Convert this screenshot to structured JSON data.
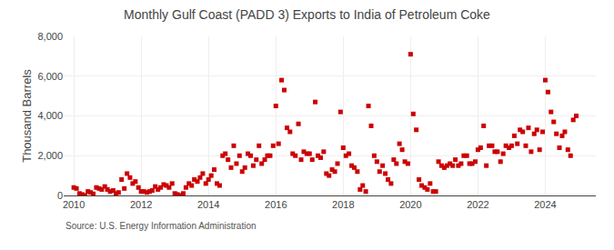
{
  "chart_data": {
    "type": "scatter",
    "title": "Monthly Gulf Coast (PADD 3) Exports to India of Petroleum Coke",
    "ylabel": "Thousand Barrels",
    "annotations": [
      "Source: U.S. Energy Information Administration"
    ],
    "color": "#cc0000",
    "marker": "square",
    "grid": true,
    "xlim": [
      2009.7,
      2025.5
    ],
    "xticks": [
      2010,
      2012,
      2014,
      2016,
      2018,
      2020,
      2022,
      2024
    ],
    "ylim": [
      0,
      8000
    ],
    "yticks": [
      0,
      {
        "value": 2000,
        "label": "2,000"
      },
      {
        "value": 4000,
        "label": "4,000"
      },
      {
        "value": 6000,
        "label": "6,000"
      },
      {
        "value": 8000,
        "label": "8,000"
      }
    ],
    "x": [
      2010.0,
      2010.08,
      2010.17,
      2010.25,
      2010.33,
      2010.42,
      2010.5,
      2010.58,
      2010.67,
      2010.75,
      2010.83,
      2010.92,
      2011.0,
      2011.08,
      2011.17,
      2011.25,
      2011.33,
      2011.42,
      2011.5,
      2011.58,
      2011.67,
      2011.75,
      2011.83,
      2011.92,
      2012.0,
      2012.08,
      2012.17,
      2012.25,
      2012.33,
      2012.42,
      2012.5,
      2012.58,
      2012.67,
      2012.75,
      2012.83,
      2012.92,
      2013.0,
      2013.08,
      2013.17,
      2013.25,
      2013.33,
      2013.42,
      2013.5,
      2013.58,
      2013.67,
      2013.75,
      2013.83,
      2013.92,
      2014.0,
      2014.08,
      2014.17,
      2014.25,
      2014.33,
      2014.42,
      2014.5,
      2014.58,
      2014.67,
      2014.75,
      2014.83,
      2014.92,
      2015.0,
      2015.08,
      2015.17,
      2015.25,
      2015.33,
      2015.42,
      2015.5,
      2015.58,
      2015.67,
      2015.75,
      2015.83,
      2015.92,
      2016.0,
      2016.08,
      2016.17,
      2016.25,
      2016.33,
      2016.42,
      2016.5,
      2016.58,
      2016.67,
      2016.75,
      2016.83,
      2016.92,
      2017.0,
      2017.08,
      2017.17,
      2017.25,
      2017.33,
      2017.42,
      2017.5,
      2017.58,
      2017.67,
      2017.75,
      2017.83,
      2017.92,
      2018.0,
      2018.08,
      2018.17,
      2018.25,
      2018.33,
      2018.42,
      2018.5,
      2018.58,
      2018.67,
      2018.75,
      2018.83,
      2018.92,
      2019.0,
      2019.08,
      2019.17,
      2019.25,
      2019.33,
      2019.42,
      2019.5,
      2019.58,
      2019.67,
      2019.75,
      2019.83,
      2019.92,
      2020.0,
      2020.08,
      2020.17,
      2020.25,
      2020.33,
      2020.42,
      2020.5,
      2020.58,
      2020.67,
      2020.75,
      2020.83,
      2020.92,
      2021.0,
      2021.08,
      2021.17,
      2021.25,
      2021.33,
      2021.42,
      2021.5,
      2021.58,
      2021.67,
      2021.75,
      2021.83,
      2021.92,
      2022.0,
      2022.08,
      2022.17,
      2022.25,
      2022.33,
      2022.42,
      2022.5,
      2022.58,
      2022.67,
      2022.75,
      2022.83,
      2022.92,
      2023.0,
      2023.08,
      2023.17,
      2023.25,
      2023.33,
      2023.42,
      2023.5,
      2023.58,
      2023.67,
      2023.75,
      2023.83,
      2023.92,
      2024.0,
      2024.08,
      2024.17,
      2024.25,
      2024.33,
      2024.42,
      2024.5,
      2024.58,
      2024.67,
      2024.75,
      2024.83,
      2024.92
    ],
    "values": [
      400,
      350,
      100,
      50,
      0,
      200,
      150,
      80,
      400,
      350,
      300,
      450,
      300,
      200,
      250,
      100,
      150,
      800,
      350,
      1100,
      900,
      600,
      700,
      400,
      200,
      200,
      150,
      200,
      250,
      450,
      300,
      400,
      550,
      500,
      400,
      600,
      100,
      50,
      0,
      100,
      400,
      600,
      500,
      800,
      700,
      900,
      1100,
      600,
      800,
      1000,
      1300,
      600,
      500,
      2000,
      2100,
      1800,
      1400,
      2500,
      1600,
      2000,
      1200,
      1400,
      2100,
      2000,
      1500,
      1800,
      2500,
      1600,
      1800,
      2000,
      2000,
      2500,
      4500,
      2600,
      5800,
      5300,
      3400,
      3200,
      2100,
      2000,
      3600,
      1800,
      2200,
      2100,
      2100,
      1800,
      4700,
      2000,
      1900,
      2200,
      1100,
      1000,
      1300,
      1200,
      1600,
      4200,
      2400,
      2000,
      2100,
      1500,
      1400,
      1200,
      300,
      500,
      200,
      4500,
      3500,
      2000,
      1700,
      1200,
      1500,
      1100,
      800,
      600,
      1800,
      1600,
      2600,
      2300,
      1700,
      1600,
      7100,
      4100,
      3300,
      800,
      500,
      400,
      300,
      600,
      200,
      200,
      1700,
      1500,
      1400,
      1500,
      1600,
      1500,
      1800,
      1500,
      1600,
      2000,
      2000,
      1600,
      1600,
      1700,
      2300,
      2400,
      3500,
      1500,
      2500,
      2500,
      2200,
      2200,
      1700,
      2100,
      2500,
      2400,
      2500,
      3000,
      2600,
      3300,
      3200,
      2500,
      3400,
      2200,
      3100,
      3300,
      2300,
      3200,
      5800,
      5200,
      4200,
      3700,
      3100,
      2400,
      3000,
      3200,
      2300,
      2000,
      3800,
      4000
    ]
  }
}
